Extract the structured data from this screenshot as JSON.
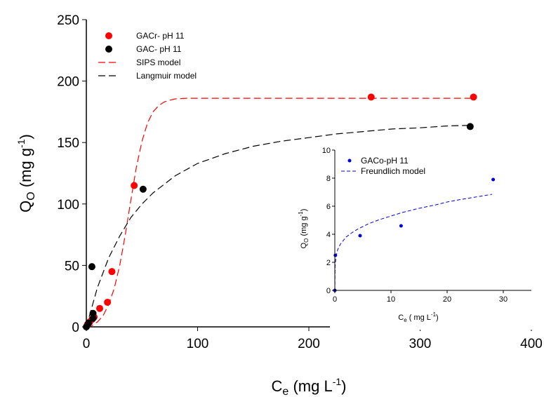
{
  "chart_data": [
    {
      "type": "scatter",
      "title": "",
      "xlabel": {
        "base": "C",
        "sub": "e",
        "units": " (mg L",
        "sup": "-1",
        "close": ")"
      },
      "ylabel": {
        "base": "Q",
        "sub": "O",
        "units": " (mg g",
        "sup": "-1",
        "close": ")"
      },
      "xlim": [
        0,
        400
      ],
      "ylim": [
        0,
        250
      ],
      "xticks": [
        "0",
        "100",
        "200",
        "300",
        "400"
      ],
      "yticks": [
        "0",
        "50",
        "100",
        "150",
        "200",
        "250"
      ],
      "grid": false,
      "legend_position": "top-left",
      "series": [
        {
          "name": "GACr- pH 11",
          "kind": "points",
          "color": "#ff0000",
          "x": [
            1,
            3,
            5,
            7,
            12,
            19,
            23,
            43,
            256,
            348
          ],
          "y": [
            2,
            4,
            6,
            8,
            15,
            20,
            45,
            115,
            187,
            187
          ]
        },
        {
          "name": "GAC- pH 11",
          "kind": "points",
          "color": "#000000",
          "x": [
            0,
            2,
            5,
            6,
            6,
            51,
            345
          ],
          "y": [
            0,
            3,
            49,
            7,
            11,
            112,
            163
          ]
        },
        {
          "name": "SIPS model",
          "kind": "dashed-line",
          "color": "#ff0000",
          "x": [
            0,
            5,
            10,
            15,
            20,
            25,
            30,
            35,
            40,
            45,
            50,
            55,
            60,
            65,
            70,
            75,
            80,
            90,
            100,
            150,
            200,
            250,
            300,
            348
          ],
          "y": [
            0,
            1,
            4,
            9,
            18,
            31,
            50,
            75,
            103,
            130,
            151,
            166,
            175,
            180,
            183,
            184.5,
            185.5,
            186,
            186,
            186,
            186,
            186,
            186,
            186
          ]
        },
        {
          "name": "Langmuir model",
          "kind": "dashed-line",
          "color": "#000000",
          "x": [
            0,
            10,
            20,
            30,
            40,
            50,
            60,
            80,
            100,
            125,
            150,
            175,
            200,
            225,
            250,
            275,
            300,
            325,
            345
          ],
          "y": [
            0,
            32,
            56,
            74,
            89,
            100,
            109,
            123,
            133,
            141,
            147,
            151,
            154,
            157,
            159,
            161,
            162,
            163.5,
            164
          ]
        }
      ]
    },
    {
      "type": "scatter",
      "title": "",
      "xlabel": {
        "base": "C",
        "sub": "e",
        "units": " ( mg L",
        "sup": "-1",
        "close": ")"
      },
      "ylabel": {
        "base": "Q",
        "sub": "O",
        "units": " (mg g",
        "sup": "-1",
        "close": ")"
      },
      "xlim": [
        0,
        35
      ],
      "ylim": [
        0,
        10
      ],
      "xticks": [
        "0",
        "10",
        "20",
        "30"
      ],
      "yticks": [
        "0",
        "2",
        "4",
        "6",
        "8",
        "10"
      ],
      "grid": false,
      "legend_position": "top-left",
      "series": [
        {
          "name": "GACo-pH 11",
          "kind": "points",
          "color": "#0000dd",
          "x": [
            0,
            0.1,
            4.5,
            11.8,
            28.2
          ],
          "y": [
            0,
            2.5,
            3.9,
            4.6,
            7.9
          ]
        },
        {
          "name": "Freundlich model",
          "kind": "dashed-line",
          "color": "#0000dd",
          "x": [
            0,
            0.05,
            0.1,
            0.2,
            0.5,
            1,
            2,
            3,
            4,
            5,
            6,
            8,
            10,
            12,
            15,
            18,
            20,
            22,
            25,
            28
          ],
          "y": [
            0,
            1.7,
            2.0,
            2.35,
            2.9,
            3.3,
            3.8,
            4.1,
            4.35,
            4.55,
            4.75,
            5.05,
            5.3,
            5.55,
            5.85,
            6.1,
            6.3,
            6.45,
            6.65,
            6.85
          ]
        }
      ]
    }
  ]
}
